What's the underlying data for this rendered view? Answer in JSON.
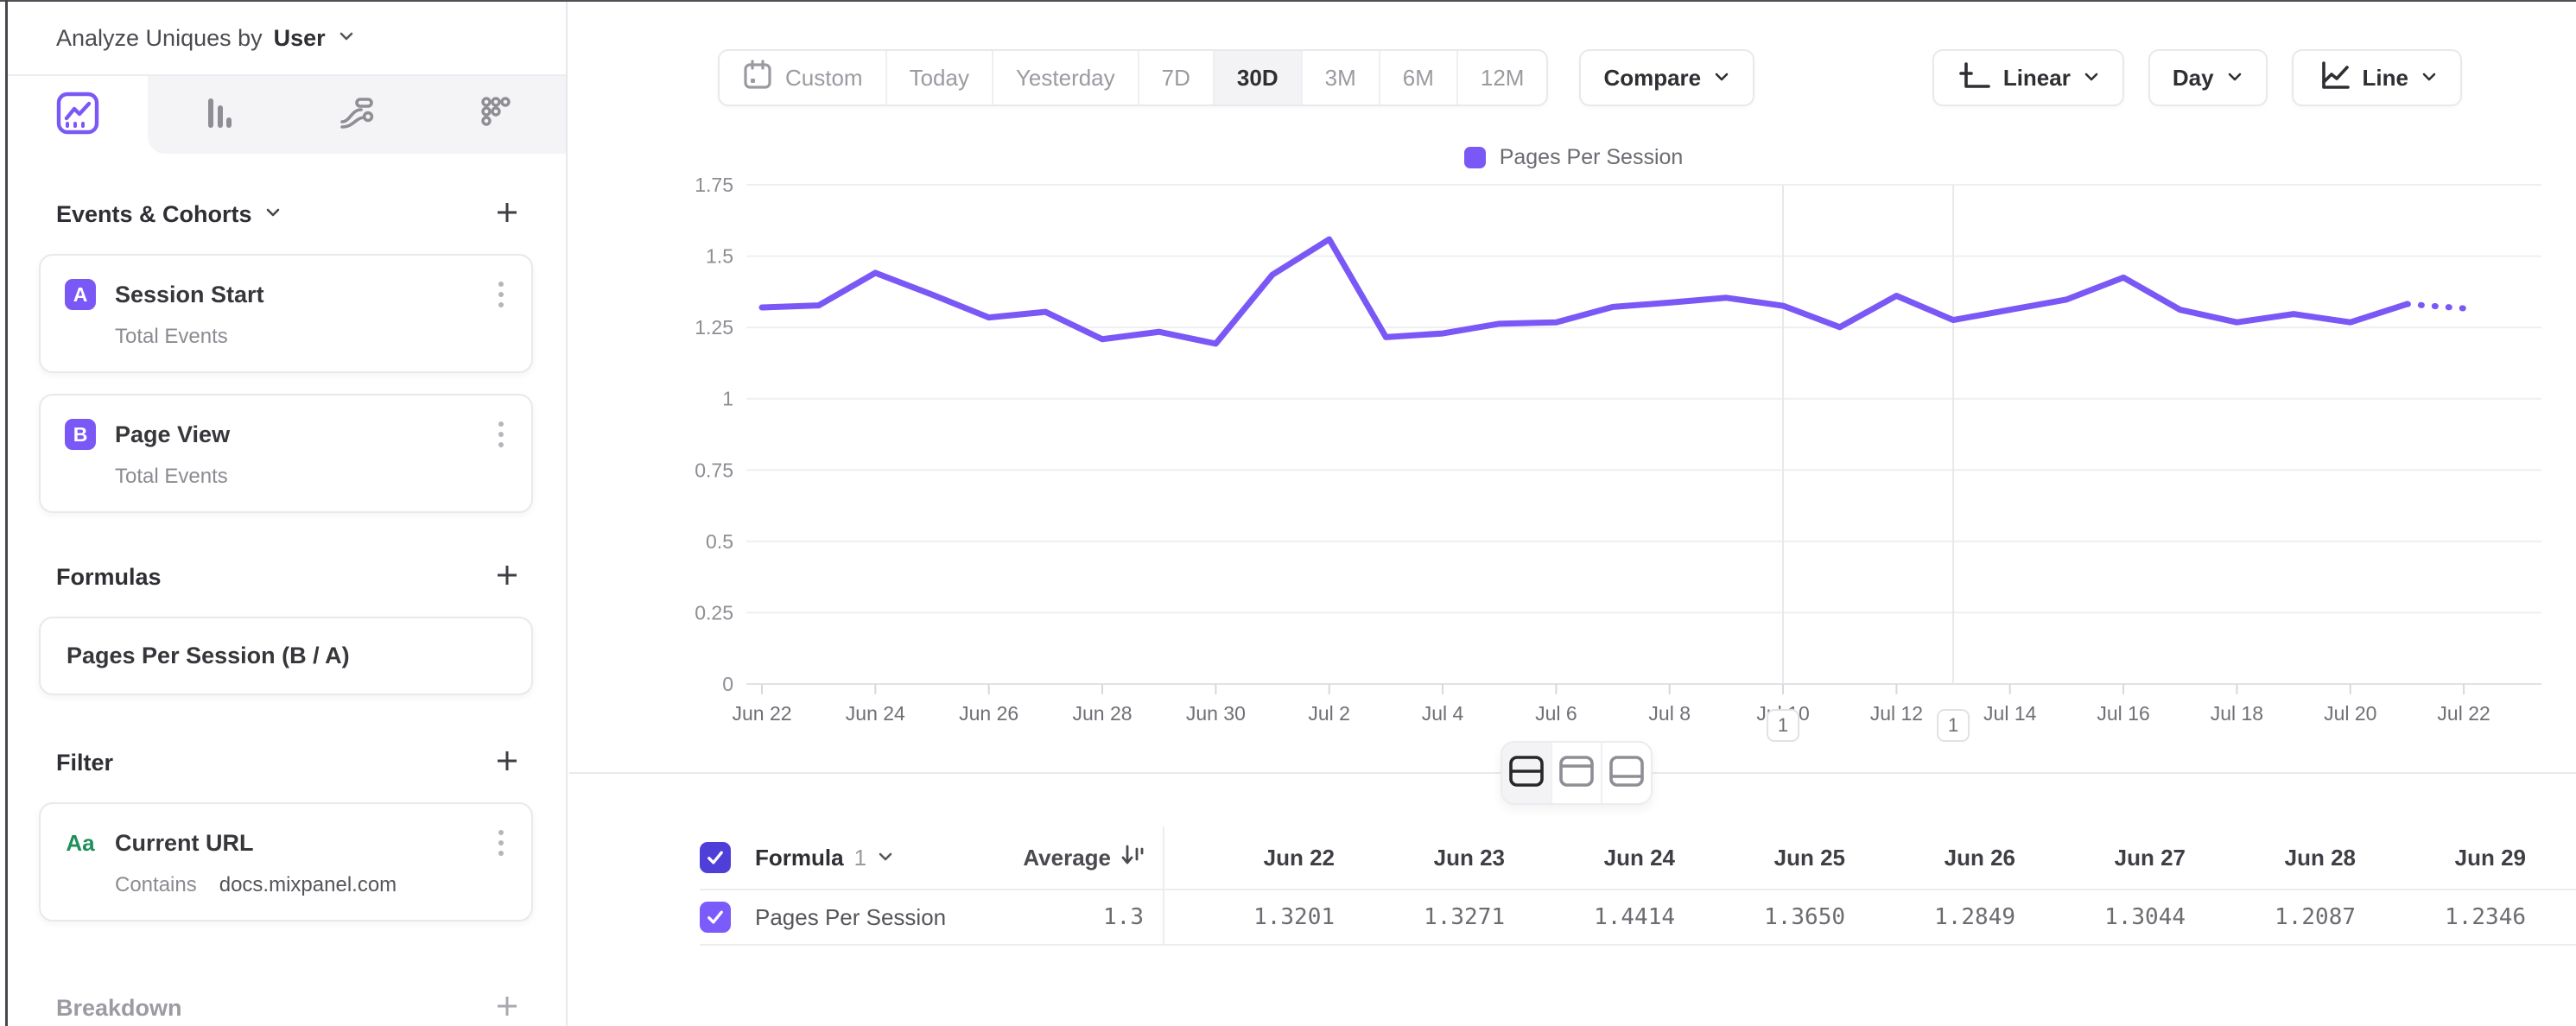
{
  "meta": {
    "accent_purple": "#7a58f6",
    "indigo_checkbox": "#4f3fd8",
    "row_checkbox_purple": "#7b5bfa",
    "filter_green": "#1f8f5c",
    "gridline_gray": "#efeff2"
  },
  "sidebar": {
    "analyze_label": "Analyze Uniques by",
    "analyze_value": "User",
    "sections": {
      "events": {
        "title": "Events & Cohorts",
        "items": [
          {
            "letter": "A",
            "title": "Session Start",
            "subtitle": "Total Events"
          },
          {
            "letter": "B",
            "title": "Page View",
            "subtitle": "Total Events"
          }
        ]
      },
      "formulas": {
        "title": "Formulas",
        "items": [
          {
            "title": "Pages Per Session (B / A)"
          }
        ]
      },
      "filter": {
        "title": "Filter",
        "items": [
          {
            "type_icon": "Aa",
            "title": "Current URL",
            "operator": "Contains",
            "value": "docs.mixpanel.com"
          }
        ]
      },
      "breakdown": {
        "title": "Breakdown"
      }
    }
  },
  "toolbar": {
    "ranges": [
      "Custom",
      "Today",
      "Yesterday",
      "7D",
      "30D",
      "3M",
      "6M",
      "12M"
    ],
    "active_range": "30D",
    "compare_label": "Compare",
    "scale_label": "Linear",
    "interval_label": "Day",
    "chart_type_label": "Line"
  },
  "legend": {
    "label": "Pages Per Session"
  },
  "chart_data": {
    "type": "line",
    "title": "",
    "xlabel": "",
    "ylabel": "",
    "ylim": [
      0,
      1.75
    ],
    "grid": true,
    "legend_position": "top-center",
    "yticks": [
      "0",
      "0.25",
      "0.5",
      "0.75",
      "1",
      "1.25",
      "1.5",
      "1.75"
    ],
    "xticks": [
      "Jun 22",
      "Jun 24",
      "Jun 26",
      "Jun 28",
      "Jun 30",
      "Jul 2",
      "Jul 4",
      "Jul 6",
      "Jul 8",
      "Jul 10",
      "Jul 12",
      "Jul 14",
      "Jul 16",
      "Jul 18",
      "Jul 20",
      "Jul 22"
    ],
    "annotations": [
      {
        "x": "Jul 10",
        "label": "1"
      },
      {
        "x": "Jul 13",
        "label": "1"
      }
    ],
    "series": [
      {
        "name": "Pages Per Session",
        "color": "#7a58f6",
        "dotted_last_segment": true,
        "x": [
          "Jun 22",
          "Jun 23",
          "Jun 24",
          "Jun 25",
          "Jun 26",
          "Jun 27",
          "Jun 28",
          "Jun 29",
          "Jun 30",
          "Jul 1",
          "Jul 2",
          "Jul 3",
          "Jul 4",
          "Jul 5",
          "Jul 6",
          "Jul 7",
          "Jul 8",
          "Jul 9",
          "Jul 10",
          "Jul 11",
          "Jul 12",
          "Jul 13",
          "Jul 14",
          "Jul 15",
          "Jul 16",
          "Jul 17",
          "Jul 18",
          "Jul 19",
          "Jul 20",
          "Jul 21",
          "Jul 22"
        ],
        "values": [
          1.3201,
          1.3271,
          1.4414,
          1.365,
          1.2849,
          1.3044,
          1.2087,
          1.2346,
          1.193,
          1.435,
          1.559,
          1.216,
          1.229,
          1.263,
          1.268,
          1.322,
          1.337,
          1.354,
          1.326,
          1.251,
          1.361,
          1.276,
          1.312,
          1.348,
          1.425,
          1.312,
          1.268,
          1.297,
          1.268,
          1.332,
          1.317
        ]
      }
    ]
  },
  "table": {
    "header": {
      "name_label": "Formula",
      "name_number": "1",
      "average_label": "Average",
      "dates": [
        "Jun 22",
        "Jun 23",
        "Jun 24",
        "Jun 25",
        "Jun 26",
        "Jun 27",
        "Jun 28",
        "Jun 29"
      ]
    },
    "rows": [
      {
        "label": "Pages Per Session",
        "average": "1.3",
        "values": [
          "1.3201",
          "1.3271",
          "1.4414",
          "1.3650",
          "1.2849",
          "1.3044",
          "1.2087",
          "1.2346"
        ]
      }
    ]
  }
}
